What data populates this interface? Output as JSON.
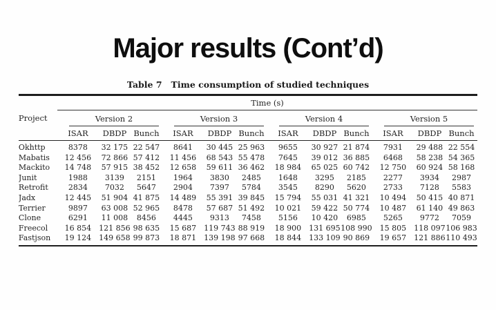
{
  "slide": {
    "title": "Major results (Cont’d)"
  },
  "colors": {
    "background": "#fefefe",
    "title_text": "#0e0e0e",
    "table_text": "#232323",
    "rule": "#1d1d1d"
  },
  "table": {
    "caption_label": "Table 7",
    "caption_title": "Time consumption of studied techniques",
    "project_header": "Project",
    "time_header": "Time (s)",
    "version_headers": [
      "Version 2",
      "Version 3",
      "Version 4",
      "Version 5"
    ],
    "sub_headers": [
      "ISAR",
      "DBDP",
      "Bunch"
    ],
    "rows": [
      {
        "project": "Okhttp",
        "values": [
          "8378",
          "32 175",
          "22 547",
          "8641",
          "30 445",
          "25 963",
          "9655",
          "30 927",
          "21 874",
          "7931",
          "29 488",
          "22 554"
        ]
      },
      {
        "project": "Mabatis",
        "values": [
          "12 456",
          "72 866",
          "57 412",
          "11 456",
          "68 543",
          "55 478",
          "7645",
          "39 012",
          "36 885",
          "6468",
          "58 238",
          "54 365"
        ]
      },
      {
        "project": "Mackito",
        "values": [
          "14 748",
          "57 915",
          "38 452",
          "12 658",
          "59 611",
          "36 462",
          "18 984",
          "65 025",
          "60 742",
          "12 750",
          "60 924",
          "58 168"
        ]
      },
      {
        "project": "Junit",
        "values": [
          "1988",
          "3139",
          "2151",
          "1964",
          "3830",
          "2485",
          "1648",
          "3295",
          "2185",
          "2277",
          "3934",
          "2987"
        ]
      },
      {
        "project": "Retrofit",
        "values": [
          "2834",
          "7032",
          "5647",
          "2904",
          "7397",
          "5784",
          "3545",
          "8290",
          "5620",
          "2733",
          "7128",
          "5583"
        ]
      },
      {
        "project": "Jadx",
        "values": [
          "12 445",
          "51 904",
          "41 875",
          "14 489",
          "55 391",
          "39 845",
          "15 794",
          "55 031",
          "41 321",
          "10 494",
          "50 415",
          "40 871"
        ]
      },
      {
        "project": "Terrier",
        "values": [
          "9897",
          "63 008",
          "52 965",
          "8478",
          "57 687",
          "51 492",
          "10 021",
          "59 422",
          "50 774",
          "10 487",
          "61 140",
          "49 863"
        ]
      },
      {
        "project": "Clone",
        "values": [
          "6291",
          "11 008",
          "8456",
          "4445",
          "9313",
          "7458",
          "5156",
          "10 420",
          "6985",
          "5265",
          "9772",
          "7059"
        ]
      },
      {
        "project": "Freecol",
        "values": [
          "16 854",
          "121 856",
          "98 635",
          "15 687",
          "119 743",
          "88 919",
          "18 900",
          "131 695",
          "108 990",
          "15 805",
          "118 097",
          "106 983"
        ]
      },
      {
        "project": "Fastjson",
        "values": [
          "19 124",
          "149 658",
          "99 873",
          "18 871",
          "139 198",
          "97 668",
          "18 844",
          "133 109",
          "90 869",
          "19 657",
          "121 886",
          "110 493"
        ]
      }
    ]
  }
}
